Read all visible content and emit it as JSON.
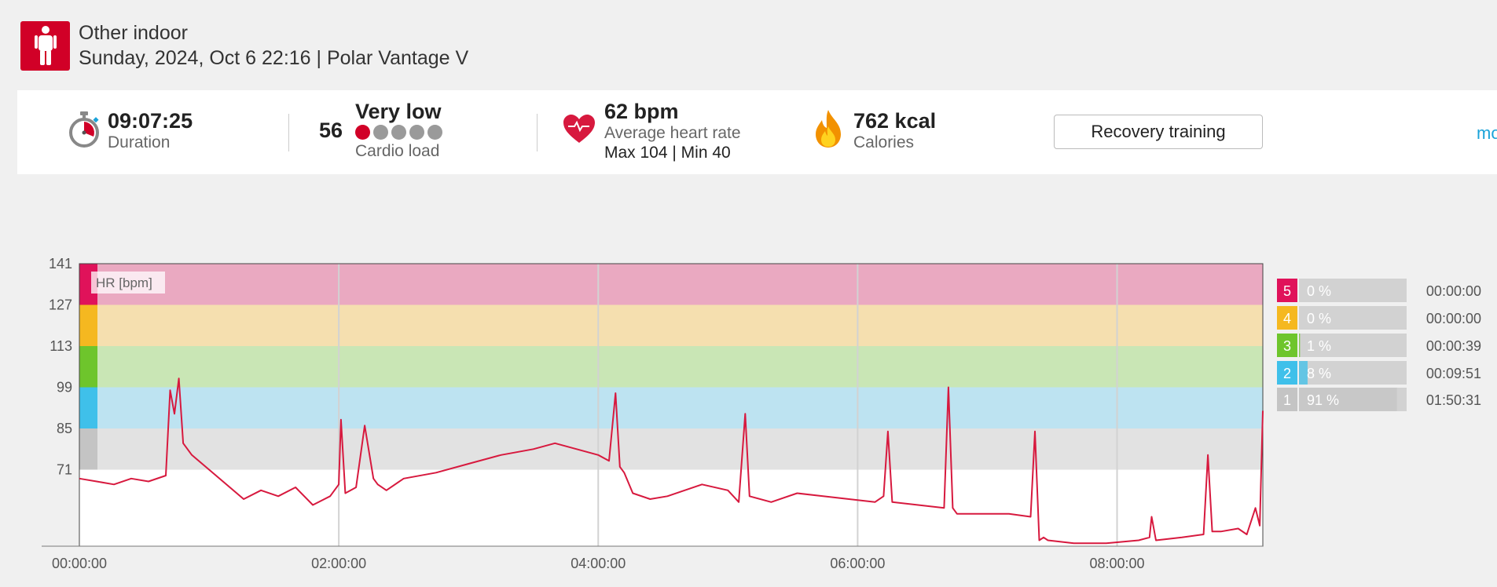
{
  "header": {
    "sport": "Other indoor",
    "subtitle": "Sunday, 2024, Oct 6 22:16 | Polar Vantage V"
  },
  "summary": {
    "duration_value": "09:07:25",
    "duration_label": "Duration",
    "cardio_value": "56",
    "cardio_level": "Very low",
    "cardio_label": "Cardio load",
    "cardio_dots_active": 1,
    "cardio_dots_total": 5,
    "hr_value": "62 bpm",
    "hr_label": "Average heart rate",
    "hr_maxmin": "Max 104  |  Min 40",
    "calories_value": "762 kcal",
    "calories_label": "Calories",
    "benefit_button": "Recovery training",
    "more_link": "mo"
  },
  "colors": {
    "brand": "#d10027",
    "zone5": "#e0125a",
    "zone4": "#f5b820",
    "zone3": "#6ec52c",
    "zone2": "#3fc0ea",
    "zone1": "#c4c4c4",
    "hr_line": "#d7193e",
    "link": "#1aa3d9"
  },
  "chart_data": {
    "type": "line",
    "title": "",
    "ylabel": "HR [bpm]",
    "xlabel": "",
    "x_unit": "hh:mm:ss",
    "ylim": [
      45,
      141
    ],
    "xlim": [
      "00:00:00",
      "09:07:25"
    ],
    "y_ticks": [
      141,
      127,
      113,
      99,
      85,
      71
    ],
    "x_tick_labels": [
      "00:00:00",
      "02:00:00",
      "04:00:00",
      "06:00:00",
      "08:00:00"
    ],
    "grid": true,
    "zones": [
      {
        "zone": 5,
        "from": 127,
        "to": 141,
        "color": "#e0125a",
        "band": "#eaa9c1"
      },
      {
        "zone": 4,
        "from": 113,
        "to": 127,
        "color": "#f5b820",
        "band": "#f5dfaf"
      },
      {
        "zone": 3,
        "from": 99,
        "to": 113,
        "color": "#6ec52c",
        "band": "#c9e6b5"
      },
      {
        "zone": 2,
        "from": 85,
        "to": 99,
        "color": "#3fc0ea",
        "band": "#bde3f1"
      },
      {
        "zone": 1,
        "from": 71,
        "to": 85,
        "color": "#c4c4c4",
        "band": "#e2e2e2"
      }
    ],
    "series": [
      {
        "x": [
          "00:00:00",
          "00:08:00",
          "00:16:00",
          "00:24:00",
          "00:32:00",
          "00:40:00",
          "00:42:00",
          "00:44:00",
          "00:46:00",
          "00:48:00",
          "00:52:00",
          "01:00:00",
          "01:08:00",
          "01:16:00",
          "01:24:00",
          "01:32:00",
          "01:40:00",
          "01:48:00",
          "01:56:00",
          "02:00:00",
          "02:01:00",
          "02:03:00",
          "02:08:00",
          "02:12:00",
          "02:16:00",
          "02:18:00",
          "02:22:00",
          "02:30:00",
          "02:45:00",
          "03:00:00",
          "03:15:00",
          "03:30:00",
          "03:40:00",
          "03:50:00",
          "04:00:00",
          "04:05:00",
          "04:08:00",
          "04:10:00",
          "04:12:00",
          "04:16:00",
          "04:24:00",
          "04:32:00",
          "04:40:00",
          "04:48:00",
          "05:00:00",
          "05:05:00",
          "05:08:00",
          "05:10:00",
          "05:20:00",
          "05:32:00",
          "05:44:00",
          "05:56:00",
          "06:08:00",
          "06:12:00",
          "06:14:00",
          "06:16:00",
          "06:28:00",
          "06:40:00",
          "06:42:00",
          "06:44:00",
          "06:46:00",
          "06:58:00",
          "07:10:00",
          "07:20:00",
          "07:22:00",
          "07:24:00",
          "07:26:00",
          "07:28:00",
          "07:40:00",
          "07:55:00",
          "08:10:00",
          "08:15:00",
          "08:16:00",
          "08:18:00",
          "08:30:00",
          "08:40:00",
          "08:42:00",
          "08:44:00",
          "08:48:00",
          "08:56:00",
          "09:00:00",
          "09:04:00",
          "09:06:00",
          "09:07:25"
        ],
        "y": [
          68,
          67,
          66,
          68,
          67,
          69,
          98,
          90,
          102,
          80,
          76,
          71,
          66,
          61,
          64,
          62,
          65,
          59,
          62,
          66,
          88,
          63,
          65,
          86,
          68,
          66,
          64,
          68,
          70,
          73,
          76,
          78,
          80,
          78,
          76,
          74,
          97,
          72,
          70,
          63,
          61,
          62,
          64,
          66,
          64,
          60,
          90,
          62,
          60,
          63,
          62,
          61,
          60,
          62,
          84,
          60,
          59,
          58,
          99,
          58,
          56,
          56,
          56,
          55,
          84,
          47,
          48,
          47,
          46,
          46,
          47,
          48,
          55,
          47,
          48,
          49,
          76,
          50,
          50,
          51,
          49,
          58,
          52,
          91
        ]
      }
    ]
  },
  "zone_table": [
    {
      "zone": "5",
      "percent": "0 %",
      "fraction": 0.0,
      "time": "00:00:00"
    },
    {
      "zone": "4",
      "percent": "0 %",
      "fraction": 0.0,
      "time": "00:00:00"
    },
    {
      "zone": "3",
      "percent": "1 %",
      "fraction": 0.01,
      "time": "00:00:39"
    },
    {
      "zone": "2",
      "percent": "8 %",
      "fraction": 0.08,
      "time": "00:09:51"
    },
    {
      "zone": "1",
      "percent": "91 %",
      "fraction": 0.91,
      "time": "01:50:31"
    }
  ]
}
